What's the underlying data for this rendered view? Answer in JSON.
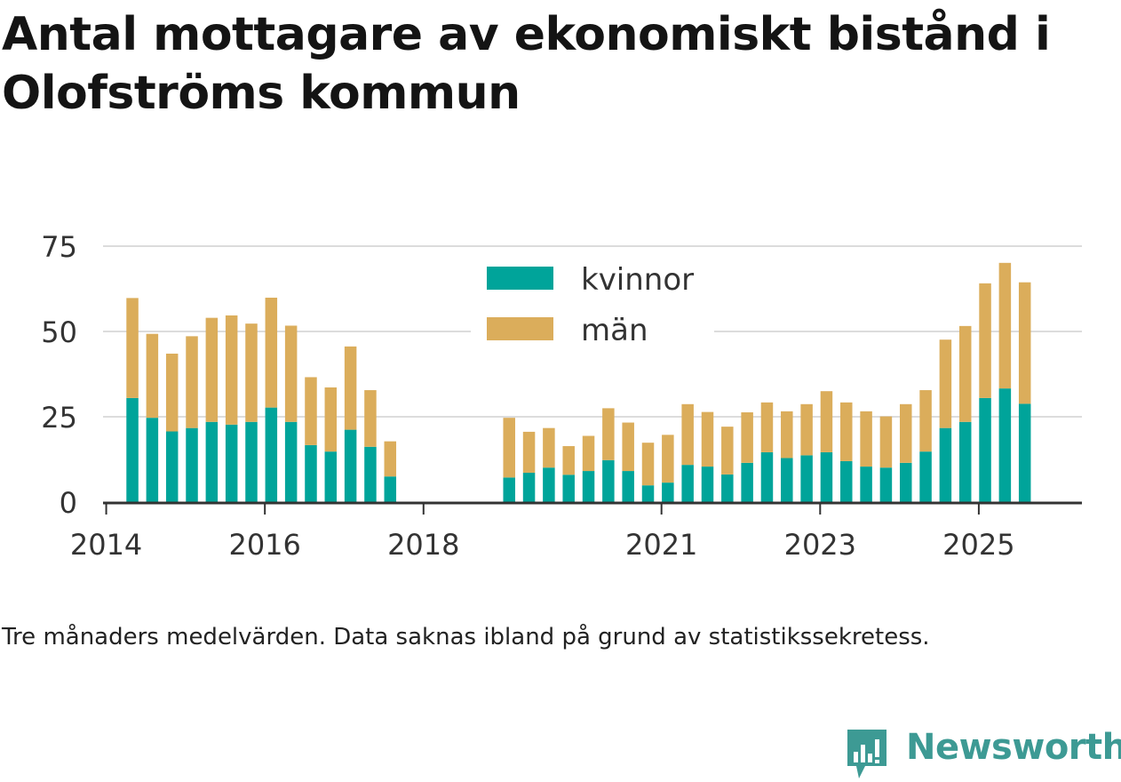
{
  "title": "Antal mottagare av ekonomiskt bistånd i Olofströms kommun",
  "caption": "Tre månaders medelvärden. Data saknas ibland på grund av statistikssekretess.",
  "brand": "Newsworthy",
  "colors": {
    "kvinnor": "#00a49a",
    "man": "#dbad5b",
    "grid": "#dcdcdc",
    "axis": "#333333",
    "brand": "#3d9a94"
  },
  "chart_data": {
    "type": "bar",
    "stacked": true,
    "title": "Antal mottagare av ekonomiskt bistånd i Olofströms kommun",
    "xlabel": "",
    "ylabel": "",
    "ylim": [
      0,
      75
    ],
    "yticks": [
      "0",
      "25",
      "50",
      "75"
    ],
    "xlim": [
      2013.96,
      2026.3
    ],
    "xtick_labels": [
      "2014",
      "2016",
      "2018",
      "2021",
      "2023",
      "2025"
    ],
    "legend_position": "top-center",
    "legend": [
      "kvinnor",
      "män"
    ],
    "x": [
      2014.33,
      2014.58,
      2014.83,
      2015.08,
      2015.33,
      2015.58,
      2015.83,
      2016.08,
      2016.33,
      2016.58,
      2016.83,
      2017.08,
      2017.33,
      2017.58,
      2019.08,
      2019.33,
      2019.58,
      2019.83,
      2020.08,
      2020.33,
      2020.58,
      2020.83,
      2021.08,
      2021.33,
      2021.58,
      2021.83,
      2022.08,
      2022.33,
      2022.58,
      2022.83,
      2023.08,
      2023.33,
      2023.58,
      2023.83,
      2024.08,
      2024.33,
      2024.58,
      2024.83,
      2025.08,
      2025.33,
      2025.58
    ],
    "series": [
      {
        "name": "kvinnor",
        "values": [
          30.5,
          24.7,
          20.7,
          21.7,
          23.5,
          22.7,
          23.5,
          27.7,
          23.5,
          16.7,
          14.8,
          21.2,
          16.2,
          7.5,
          7.2,
          8.6,
          10.1,
          8.0,
          9.1,
          12.3,
          9.1,
          4.9,
          5.7,
          10.9,
          10.4,
          8.1,
          11.5,
          14.6,
          12.9,
          13.7,
          14.6,
          12.0,
          10.4,
          10.1,
          11.5,
          14.8,
          21.7,
          23.5,
          30.5,
          33.3,
          28.8
        ]
      },
      {
        "name": "män",
        "values": [
          29.3,
          24.6,
          22.8,
          26.9,
          30.5,
          32.0,
          28.8,
          32.2,
          28.2,
          19.9,
          18.8,
          24.4,
          16.6,
          10.3,
          17.5,
          12.0,
          11.6,
          8.4,
          10.3,
          15.2,
          14.2,
          12.5,
          14.0,
          17.8,
          16.0,
          14.0,
          14.8,
          14.6,
          13.7,
          15.0,
          17.9,
          17.2,
          16.2,
          15.0,
          17.2,
          18.0,
          25.9,
          28.1,
          33.6,
          36.8,
          35.6
        ]
      }
    ]
  }
}
